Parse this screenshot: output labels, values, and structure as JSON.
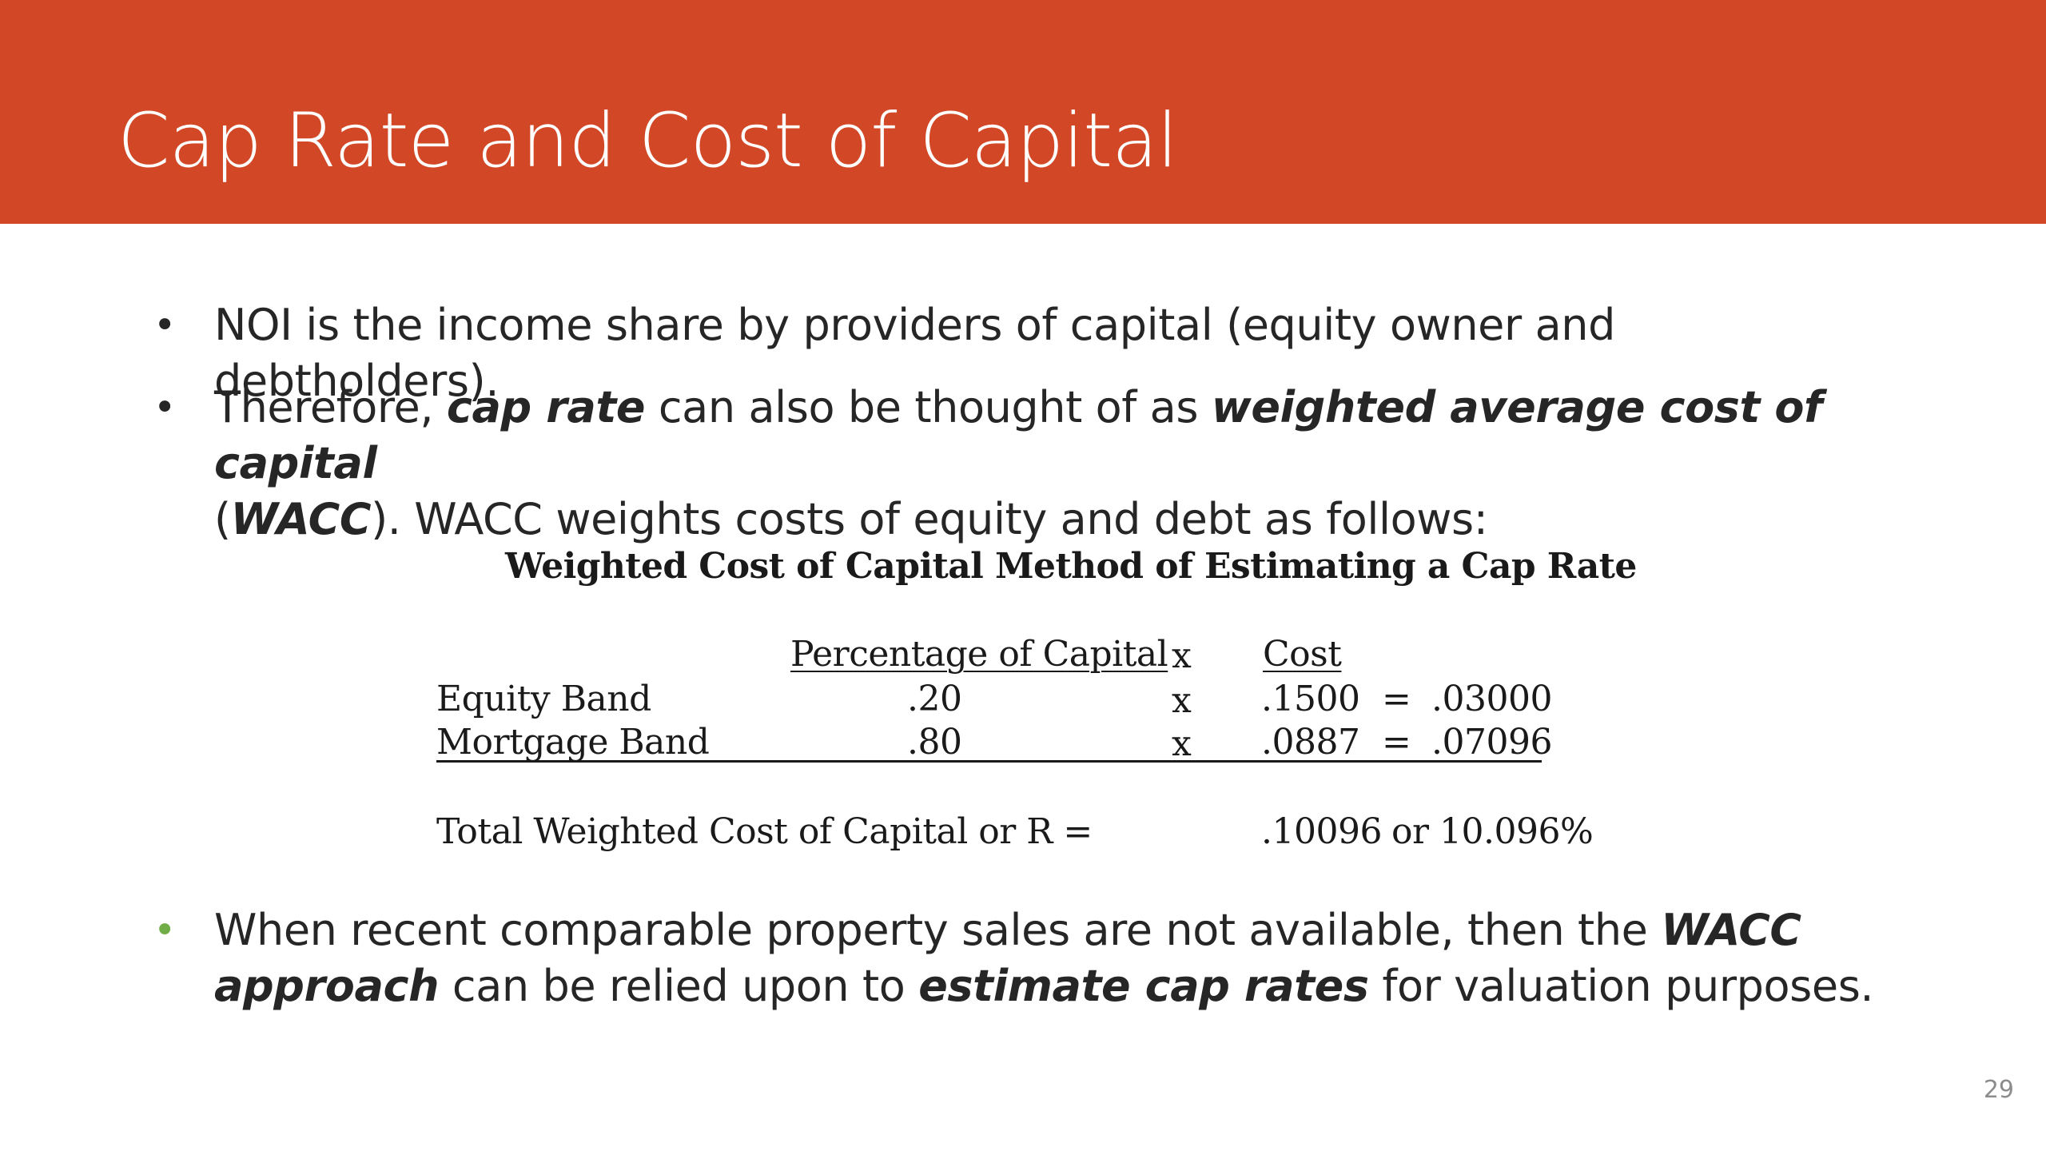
{
  "colors": {
    "title_bar": "#D24726",
    "title_text": "#FFFFFF",
    "bullet_dot": "#262626",
    "bullet_dot_accent": "#70AD47",
    "page_number": "#8C8C8C"
  },
  "slide": {
    "title": "Cap Rate and Cost of Capital",
    "page_number": "29"
  },
  "bullets": {
    "b1": {
      "dot": "•",
      "text": "NOI is the income share by providers of capital (equity owner and debtholders)."
    },
    "b2": {
      "dot": "•",
      "t1": "Therefore, ",
      "e1": "cap rate",
      "t2": " can also be thought of as ",
      "e2": "weighted average cost of capital",
      "t3": "(",
      "e3": "WACC",
      "t4": "). WACC weights costs of equity and debt as follows:"
    },
    "b3": {
      "dot": "•",
      "t1": "When recent comparable property sales are not available, then the ",
      "e1": "WACC approach",
      "t2": " can be relied upon to ",
      "e2": "estimate cap rates",
      "t3": " for valuation purposes."
    }
  },
  "wacc_table": {
    "title": "Weighted Cost of Capital Method of Estimating a Cap Rate",
    "headers": {
      "percentage": "Percentage of Capital",
      "times": "x",
      "cost": "Cost"
    },
    "rows": [
      {
        "label": "Equity Band",
        "pct": ".20",
        "times": "x",
        "cost": ".1500",
        "eq": "=",
        "result": ".03000"
      },
      {
        "label": "Mortgage Band",
        "pct": ".80",
        "times": "x",
        "cost": ".0887",
        "eq": "=",
        "result": ".07096"
      }
    ],
    "total": {
      "label": "Total Weighted Cost of Capital or R =",
      "value": ".10096",
      "alt": "or 10.096%"
    }
  }
}
